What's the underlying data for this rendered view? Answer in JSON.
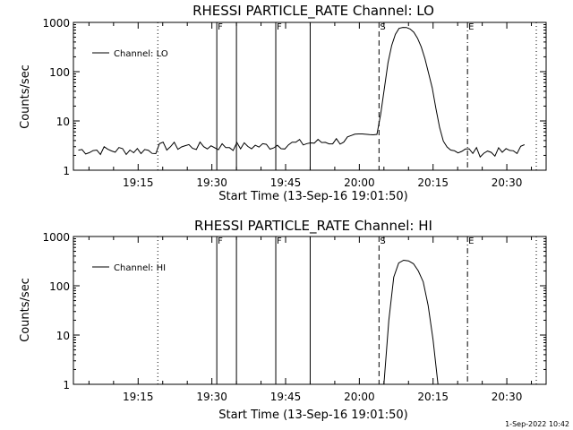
{
  "footer": {
    "timestamp": "1-Sep-2022 10:42"
  },
  "chart_data": [
    {
      "type": "line",
      "title": "RHESSI PARTICLE_RATE Channel: LO",
      "xlabel": "Start Time (13-Sep-16 19:01:50)",
      "ylabel": "Counts/sec",
      "y_scale": "log",
      "ylim": [
        1,
        1000
      ],
      "xlim": [
        "19:01:50",
        "20:38:00"
      ],
      "x_tick_labels": [
        "19:15",
        "19:30",
        "19:45",
        "20:00",
        "20:15",
        "20:30"
      ],
      "y_tick_labels": [
        "1",
        "10",
        "100",
        "1000"
      ],
      "legend": {
        "position": "top-left",
        "entries": [
          "Channel: LO"
        ]
      },
      "markers": [
        {
          "label": "",
          "time": "19:19:00",
          "style": "dotted"
        },
        {
          "label": "F",
          "time": "19:31:00",
          "style": "solid"
        },
        {
          "label": "",
          "time": "19:35:00",
          "style": "solid"
        },
        {
          "label": "F",
          "time": "19:43:00",
          "style": "solid"
        },
        {
          "label": "",
          "time": "19:50:00",
          "style": "solid"
        },
        {
          "label": "S",
          "time": "20:04:00",
          "style": "dashed"
        },
        {
          "label": "E",
          "time": "20:22:00",
          "style": "dashdot"
        },
        {
          "label": "",
          "time": "20:36:00",
          "style": "dotted"
        }
      ],
      "series": [
        {
          "name": "Channel: LO",
          "x": [
            "19:01:50",
            "19:05:00",
            "19:10:00",
            "19:15:00",
            "19:18:00",
            "19:20:00",
            "19:25:00",
            "19:30:00",
            "19:35:00",
            "19:40:00",
            "19:45:00",
            "19:50:00",
            "19:55:00",
            "20:00:00",
            "20:03:00",
            "20:04:00",
            "20:05:00",
            "20:06:00",
            "20:07:00",
            "20:08:00",
            "20:09:00",
            "20:10:00",
            "20:11:00",
            "20:12:00",
            "20:13:00",
            "20:14:00",
            "20:15:00",
            "20:16:00",
            "20:17:00",
            "20:18:00",
            "20:20:00",
            "20:25:00",
            "20:30:00",
            "20:34:00"
          ],
          "y": [
            2.5,
            2.5,
            2.5,
            2.5,
            2.5,
            3,
            3,
            3,
            3,
            3,
            3.3,
            3.5,
            3.8,
            4.5,
            5,
            8,
            40,
            200,
            500,
            750,
            800,
            780,
            650,
            450,
            250,
            100,
            40,
            10,
            4,
            2.8,
            2.5,
            2.3,
            2.3,
            2.8
          ],
          "noisy_band": true
        }
      ]
    },
    {
      "type": "line",
      "title": "RHESSI PARTICLE_RATE Channel: HI",
      "xlabel": "Start Time (13-Sep-16 19:01:50)",
      "ylabel": "Counts/sec",
      "y_scale": "log",
      "ylim": [
        1,
        1000
      ],
      "xlim": [
        "19:01:50",
        "20:38:00"
      ],
      "x_tick_labels": [
        "19:15",
        "19:30",
        "19:45",
        "20:00",
        "20:15",
        "20:30"
      ],
      "y_tick_labels": [
        "1",
        "10",
        "100",
        "1000"
      ],
      "legend": {
        "position": "top-left",
        "entries": [
          "Channel: HI"
        ]
      },
      "markers": [
        {
          "label": "",
          "time": "19:19:00",
          "style": "dotted"
        },
        {
          "label": "F",
          "time": "19:31:00",
          "style": "solid"
        },
        {
          "label": "",
          "time": "19:35:00",
          "style": "solid"
        },
        {
          "label": "F",
          "time": "19:43:00",
          "style": "solid"
        },
        {
          "label": "",
          "time": "19:50:00",
          "style": "solid"
        },
        {
          "label": "S",
          "time": "20:04:00",
          "style": "dashed"
        },
        {
          "label": "E",
          "time": "20:22:00",
          "style": "dashdot"
        },
        {
          "label": "",
          "time": "20:36:00",
          "style": "dotted"
        }
      ],
      "series": [
        {
          "name": "Channel: HI",
          "x": [
            "20:05:00",
            "20:06:00",
            "20:07:00",
            "20:08:00",
            "20:09:00",
            "20:10:00",
            "20:11:00",
            "20:12:00",
            "20:13:00",
            "20:14:00",
            "20:15:00",
            "20:16:00"
          ],
          "y": [
            1,
            20,
            150,
            290,
            330,
            320,
            280,
            200,
            120,
            40,
            8,
            1
          ]
        }
      ]
    }
  ]
}
